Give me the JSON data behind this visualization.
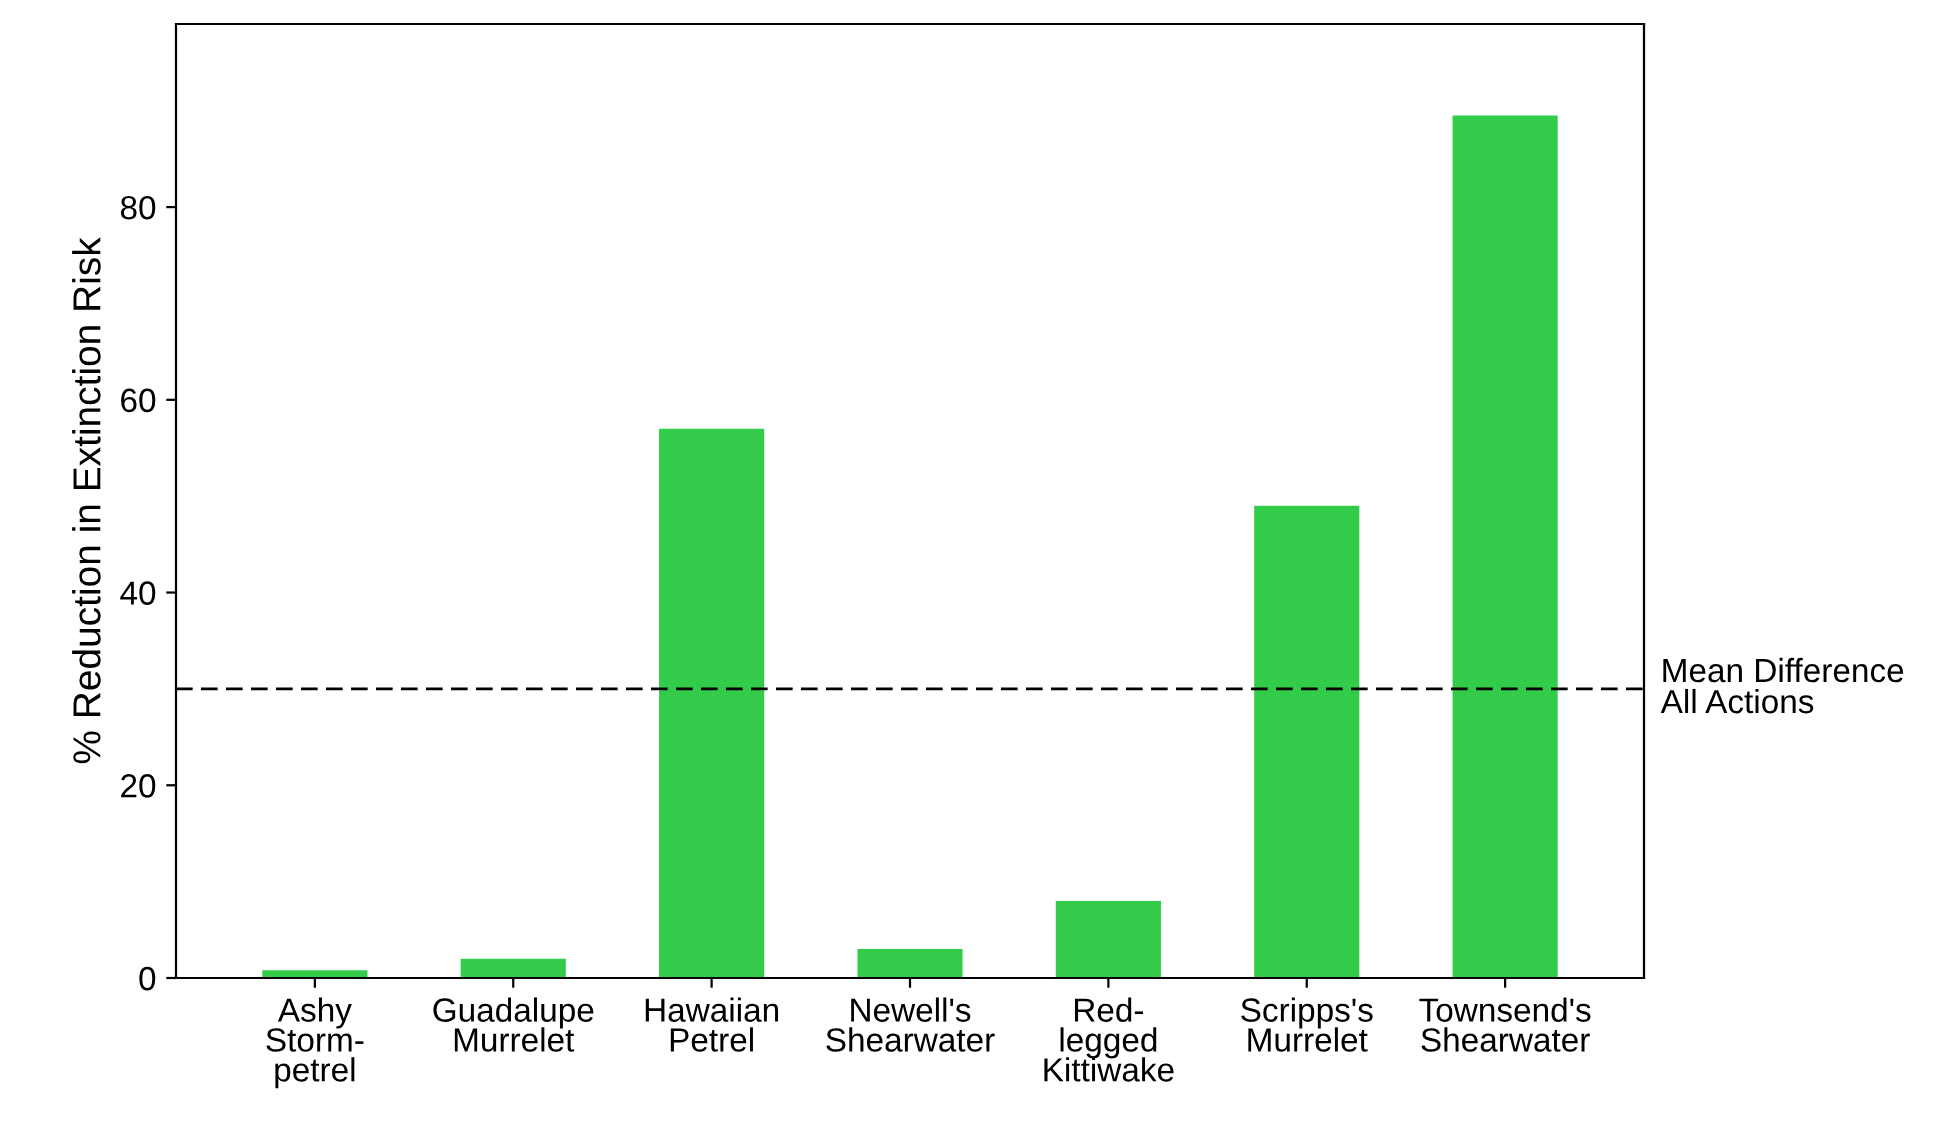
{
  "chart_data": {
    "type": "bar",
    "ylabel": "% Reduction in Extinction Risk",
    "categories": [
      "Ashy\nStorm-\npetrel",
      "Guadalupe\nMurrelet",
      "Hawaiian\nPetrel",
      "Newell's\nShearwater",
      "Red-\nlegged\nKittiwake",
      "Scripps's\nMurrelet",
      "Townsend's\nShearwater"
    ],
    "values": [
      0.8,
      2,
      57,
      3,
      8,
      49,
      89.5
    ],
    "color": "#33cc4a",
    "ylim": [
      0,
      99
    ],
    "yticks": [
      0,
      20,
      40,
      60,
      80
    ],
    "grid": false,
    "legend": false,
    "ref_lines": [
      {
        "axis": "y",
        "value": 30,
        "label": "Mean Difference\nAll Actions",
        "color": "#000000",
        "line_style": "dashed"
      }
    ]
  }
}
